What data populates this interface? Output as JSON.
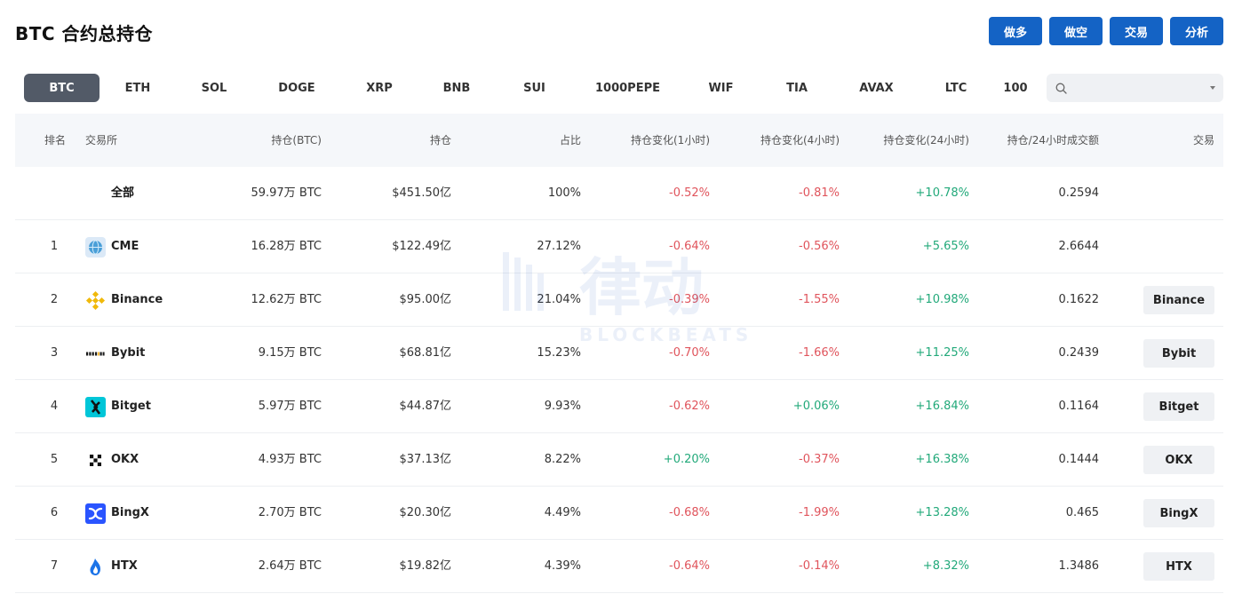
{
  "page": {
    "title": "BTC 合约总持仓"
  },
  "actions": [
    "做多",
    "做空",
    "交易",
    "分析"
  ],
  "coin_tabs": [
    "BTC",
    "ETH",
    "SOL",
    "DOGE",
    "XRP",
    "BNB",
    "SUI",
    "1000PEPE",
    "WIF",
    "TIA",
    "AVAX",
    "LTC",
    "100"
  ],
  "search": {
    "placeholder": "",
    "value": ""
  },
  "table": {
    "headers": {
      "rank": "排名",
      "exchange": "交易所",
      "oi_btc": "持仓(BTC)",
      "oi": "持仓",
      "share": "占比",
      "chg_1h": "持仓变化(1小时)",
      "chg_4h": "持仓变化(4小时)",
      "chg_24h": "持仓变化(24小时)",
      "oi_vol": "持仓/24小时成交额",
      "trade": "交易"
    },
    "rows": [
      {
        "rank": "",
        "exchange": "全部",
        "logo": "",
        "oi_btc": "59.97万 BTC",
        "oi": "$451.50亿",
        "share": "100%",
        "chg_1h": "-0.52%",
        "chg_4h": "-0.81%",
        "chg_24h": "+10.78%",
        "oi_vol": "0.2594",
        "trade": ""
      },
      {
        "rank": "1",
        "exchange": "CME",
        "logo": "cme-logo",
        "oi_btc": "16.28万 BTC",
        "oi": "$122.49亿",
        "share": "27.12%",
        "chg_1h": "-0.64%",
        "chg_4h": "-0.56%",
        "chg_24h": "+5.65%",
        "oi_vol": "2.6644",
        "trade": ""
      },
      {
        "rank": "2",
        "exchange": "Binance",
        "logo": "binance-logo",
        "oi_btc": "12.62万 BTC",
        "oi": "$95.00亿",
        "share": "21.04%",
        "chg_1h": "-0.39%",
        "chg_4h": "-1.55%",
        "chg_24h": "+10.98%",
        "oi_vol": "0.1622",
        "trade": "Binance"
      },
      {
        "rank": "3",
        "exchange": "Bybit",
        "logo": "bybit-logo",
        "oi_btc": "9.15万 BTC",
        "oi": "$68.81亿",
        "share": "15.23%",
        "chg_1h": "-0.70%",
        "chg_4h": "-1.66%",
        "chg_24h": "+11.25%",
        "oi_vol": "0.2439",
        "trade": "Bybit"
      },
      {
        "rank": "4",
        "exchange": "Bitget",
        "logo": "bitget-logo",
        "oi_btc": "5.97万 BTC",
        "oi": "$44.87亿",
        "share": "9.93%",
        "chg_1h": "-0.62%",
        "chg_4h": "+0.06%",
        "chg_24h": "+16.84%",
        "oi_vol": "0.1164",
        "trade": "Bitget"
      },
      {
        "rank": "5",
        "exchange": "OKX",
        "logo": "okx-logo",
        "oi_btc": "4.93万 BTC",
        "oi": "$37.13亿",
        "share": "8.22%",
        "chg_1h": "+0.20%",
        "chg_4h": "-0.37%",
        "chg_24h": "+16.38%",
        "oi_vol": "0.1444",
        "trade": "OKX"
      },
      {
        "rank": "6",
        "exchange": "BingX",
        "logo": "bingx-logo",
        "oi_btc": "2.70万 BTC",
        "oi": "$20.30亿",
        "share": "4.49%",
        "chg_1h": "-0.68%",
        "chg_4h": "-1.99%",
        "chg_24h": "+13.28%",
        "oi_vol": "0.465",
        "trade": "BingX"
      },
      {
        "rank": "7",
        "exchange": "HTX",
        "logo": "htx-logo",
        "oi_btc": "2.64万 BTC",
        "oi": "$19.82亿",
        "share": "4.39%",
        "chg_1h": "-0.64%",
        "chg_4h": "-0.14%",
        "chg_24h": "+8.32%",
        "oi_vol": "1.3486",
        "trade": "HTX"
      }
    ]
  },
  "colors": {
    "accent": "#1463c5",
    "negative": "#e0545c",
    "positive": "#22a97a",
    "tab_active": "#525a67",
    "header_bg": "#f5f7fa"
  },
  "watermark": {
    "text": "律动",
    "subtext": "BLOCKBEATS"
  }
}
